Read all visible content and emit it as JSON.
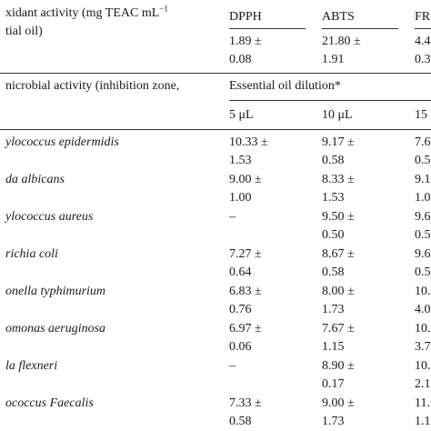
{
  "antioxidant": {
    "header_line1": "xidant activity (mg TEAC mL",
    "header_sup": "−1",
    "header_line2": "tial oil)",
    "columns": [
      "DPPH",
      "ABTS",
      "FR"
    ],
    "values": [
      {
        "top": "1.89 ±",
        "bottom": "0.08"
      },
      {
        "top": "21.80 ±",
        "bottom": "1.91"
      },
      {
        "top": "4.4",
        "bottom": "0.3"
      }
    ]
  },
  "antimicrobial": {
    "header": "nicrobial activity (inhibition zone,",
    "dilution_header": "Essential oil dilution*",
    "dilutions": [
      "5 μL",
      "10 μL",
      "15"
    ],
    "rows": [
      {
        "organism": "ylococcus epidermidis",
        "c1": [
          "10.33 ±",
          "1.53"
        ],
        "c2": [
          "9.17 ±",
          "0.58"
        ],
        "c3": [
          "7.6",
          "0.5"
        ]
      },
      {
        "organism": "da albicans",
        "c1": [
          "9.00 ±",
          "1.00"
        ],
        "c2": [
          "8.33 ±",
          "1.53"
        ],
        "c3": [
          "9.1",
          "1.0"
        ]
      },
      {
        "organism": "ylococcus aureus",
        "c1": [
          "–",
          ""
        ],
        "c2": [
          "9.50 ±",
          "0.50"
        ],
        "c3": [
          "9.6",
          "0.5"
        ]
      },
      {
        "organism": "richia coli",
        "c1": [
          "7.27 ±",
          "0.64"
        ],
        "c2": [
          "8.67 ±",
          "0.58"
        ],
        "c3": [
          "9.6",
          "0.5"
        ]
      },
      {
        "organism": "onella typhimurium",
        "c1": [
          "6.83 ±",
          "0.76"
        ],
        "c2": [
          "8.00 ±",
          "1.73"
        ],
        "c3": [
          "10.",
          "4.0"
        ]
      },
      {
        "organism": "omonas aeruginosa",
        "c1": [
          "6.97 ±",
          "0.06"
        ],
        "c2": [
          "7.67 ±",
          "1.15"
        ],
        "c3": [
          "10.",
          "3.7"
        ]
      },
      {
        "organism": "la flexneri",
        "c1": [
          "–",
          ""
        ],
        "c2": [
          "8.90 ±",
          "0.17"
        ],
        "c3": [
          "10.",
          "2.1"
        ]
      },
      {
        "organism": "ococcus Faecalis",
        "c1": [
          "7.33 ±",
          "0.58"
        ],
        "c2": [
          "9.00 ±",
          "1.73"
        ],
        "c3": [
          "11.",
          "1.1"
        ]
      }
    ]
  }
}
